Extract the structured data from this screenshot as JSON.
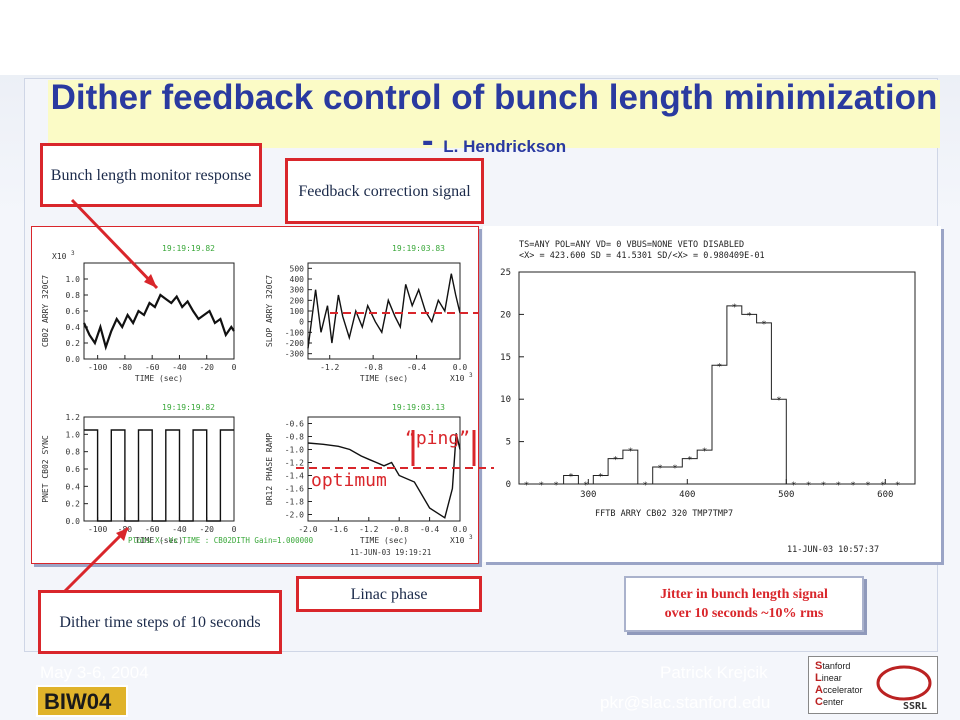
{
  "slide": {
    "title": "Dither feedback control of bunch length minimization - ",
    "title_author": "L. Hendrickson",
    "footer_date": "May 3-6, 2004",
    "footer_author": "Patrick Krejcik",
    "footer_email": "pkr@slac.stanford.edu",
    "colors": {
      "title": "#2a3aa0",
      "accent": "#d9262b",
      "footer_bg": "#0a1e6e",
      "title_band": "#fbfbc6"
    }
  },
  "callouts": {
    "bunch_length": "Bunch length monitor response",
    "feedback_correction": "Feedback correction signal",
    "dither_steps": "Dither time steps of 10 seconds",
    "linac_phase": "Linac phase",
    "jitter_line1": "Jitter in bunch length signal",
    "jitter_line2": "over 10 seconds ~10% rms",
    "ping": "“ping”",
    "optimum": "optimum"
  },
  "logos": {
    "biw": "BIW04",
    "slac_lines": [
      "Stanford",
      "Linear",
      "Accelerator",
      "Center"
    ],
    "ssrl": "SSRL"
  },
  "chart_data": [
    {
      "type": "line",
      "timestamp": "19:19:19.82",
      "ylabel": "CB02 ARRY 320C7",
      "scale_label": "X10",
      "scale_exp": "3",
      "xlabel": "TIME (sec)",
      "xlim": [
        -110,
        0
      ],
      "ylim": [
        0,
        1.2
      ],
      "xticks": [
        -100,
        -80,
        -60,
        -40,
        -20,
        0
      ],
      "xtick_labels": [
        "-100",
        "-80",
        "-60",
        "-40",
        "-20",
        "0"
      ],
      "yticks": [
        0,
        0.2,
        0.4,
        0.6,
        0.8,
        1.0
      ],
      "ytick_labels": [
        "0.0",
        "0.2",
        "0.4",
        "0.6",
        "0.8",
        "1.0"
      ],
      "x": [
        -110,
        -106,
        -102,
        -98,
        -94,
        -90,
        -86,
        -82,
        -78,
        -74,
        -70,
        -66,
        -62,
        -58,
        -54,
        -50,
        -46,
        -42,
        -38,
        -34,
        -30,
        -26,
        -22,
        -18,
        -14,
        -10,
        -6,
        -2,
        0
      ],
      "y": [
        0.45,
        0.3,
        0.2,
        0.4,
        0.15,
        0.35,
        0.5,
        0.4,
        0.55,
        0.45,
        0.6,
        0.55,
        0.7,
        0.65,
        0.8,
        0.75,
        0.7,
        0.78,
        0.65,
        0.72,
        0.6,
        0.5,
        0.55,
        0.6,
        0.45,
        0.5,
        0.3,
        0.4,
        0.35
      ]
    },
    {
      "type": "line",
      "timestamp": "19:19:03.83",
      "ylabel": "SLOP ARRY 320C7",
      "scale_label": "X10",
      "scale_exp": "3",
      "xlabel": "TIME (sec)",
      "xlim": [
        -1.4,
        0
      ],
      "ylim": [
        -350,
        550
      ],
      "xticks": [
        -1.2,
        -0.8,
        -0.4,
        0
      ],
      "xtick_labels": [
        "-1.2",
        "-0.8",
        "-0.4",
        "0.0"
      ],
      "yticks": [
        -300,
        -200,
        -100,
        0,
        100,
        200,
        300,
        400,
        500
      ],
      "ytick_labels": [
        "-300",
        "-200",
        "-100",
        "0",
        "100",
        "200",
        "300",
        "400",
        "500"
      ],
      "x": [
        -1.4,
        -1.33,
        -1.28,
        -1.22,
        -1.18,
        -1.12,
        -1.08,
        -1.02,
        -0.96,
        -0.9,
        -0.85,
        -0.78,
        -0.72,
        -0.66,
        -0.6,
        -0.55,
        -0.5,
        -0.44,
        -0.38,
        -0.32,
        -0.26,
        -0.2,
        -0.14,
        -0.08,
        -0.04,
        0
      ],
      "y": [
        -250,
        300,
        -100,
        150,
        -200,
        250,
        50,
        -150,
        100,
        -50,
        150,
        0,
        -100,
        200,
        50,
        -50,
        350,
        150,
        300,
        100,
        0,
        200,
        100,
        450,
        250,
        80
      ]
    },
    {
      "type": "line",
      "timestamp": "19:19:19.82",
      "ylabel": "PNET CB02 SYNC",
      "xlabel": "TIME (sec)",
      "xlim": [
        -110,
        0
      ],
      "ylim": [
        0,
        1.2
      ],
      "xticks": [
        -100,
        -80,
        -60,
        -40,
        -20,
        0
      ],
      "xtick_labels": [
        "-100",
        "-80",
        "-60",
        "-40",
        "-20",
        "0"
      ],
      "yticks": [
        0,
        0.2,
        0.4,
        0.6,
        0.8,
        1.0,
        1.2
      ],
      "ytick_labels": [
        "0.0",
        "0.2",
        "0.4",
        "0.6",
        "0.8",
        "1.0",
        "1.2"
      ],
      "x": [
        -110,
        -100,
        -100,
        -90,
        -90,
        -80,
        -80,
        -70,
        -70,
        -60,
        -60,
        -50,
        -50,
        -40,
        -40,
        -30,
        -30,
        -20,
        -20,
        -10,
        -10,
        0
      ],
      "y": [
        1.05,
        1.05,
        0,
        0,
        1.05,
        1.05,
        0,
        0,
        1.05,
        1.05,
        0,
        0,
        1.05,
        1.05,
        0,
        0,
        1.05,
        1.05,
        0,
        0,
        1.05,
        1.05
      ],
      "caption": "Plots  X- Vs TIME : CB02DITH Gain=1.000000"
    },
    {
      "type": "line",
      "timestamp": "19:19:03.13",
      "ylabel": "DR12 PHASE RAMP",
      "scale_label": "X10",
      "scale_exp": "3",
      "xlabel": "TIME (sec)",
      "xlim": [
        -2.0,
        0
      ],
      "ylim": [
        -2.1,
        -0.5
      ],
      "xticks": [
        -2.0,
        -1.6,
        -1.2,
        -0.8,
        -0.4,
        0
      ],
      "xtick_labels": [
        "-2.0",
        "-1.6",
        "-1.2",
        "-0.8",
        "-0.4",
        "0.0"
      ],
      "yticks": [
        -2.0,
        -1.8,
        -1.6,
        -1.4,
        -1.2,
        -1.0,
        -0.8,
        -0.6
      ],
      "ytick_labels": [
        "-2.0",
        "-1.8",
        "-1.6",
        "-1.4",
        "-1.2",
        "-1.0",
        "-0.8",
        "-0.6"
      ],
      "x": [
        -2.0,
        -1.8,
        -1.6,
        -1.45,
        -1.3,
        -1.2,
        -1.1,
        -1.0,
        -0.9,
        -0.85,
        -0.8,
        -0.6,
        -0.4,
        -0.2,
        -0.1,
        -0.05,
        0
      ],
      "y": [
        -0.9,
        -0.92,
        -0.95,
        -1.0,
        -1.1,
        -1.15,
        -1.2,
        -1.25,
        -1.2,
        -1.3,
        -1.4,
        -1.5,
        -1.9,
        -2.05,
        -1.6,
        -0.75,
        -1.0
      ],
      "caption": "11-JUN-03 19:19:21"
    },
    {
      "type": "bar",
      "header_line1": "TS=ANY      POL=ANY    VD=  0   VBUS=NONE   VETO DISABLED",
      "header_line2": "<X> =  423.600        SD =  41.5301        SD/<X> =  0.980409E-01",
      "xlabel": "FFTB        ARRY CB02   320   TMP7TMP7",
      "xlim": [
        230,
        630
      ],
      "ylim": [
        0,
        25
      ],
      "xticks": [
        300,
        400,
        500,
        600
      ],
      "xtick_labels": [
        "300",
        "400",
        "500",
        "600"
      ],
      "yticks": [
        0,
        5,
        10,
        15,
        20,
        25
      ],
      "ytick_labels": [
        "0",
        "5",
        "10",
        "15",
        "20",
        "25"
      ],
      "bin_starts": [
        230,
        245,
        260,
        275,
        290,
        305,
        320,
        335,
        350,
        365,
        380,
        395,
        410,
        425,
        440,
        455,
        470,
        485,
        500,
        515,
        530,
        545,
        560,
        575,
        590,
        605
      ],
      "bin_width": 15,
      "values": [
        0,
        0,
        0,
        1,
        0,
        1,
        3,
        4,
        0,
        2,
        2,
        3,
        4,
        14,
        21,
        20,
        19,
        10,
        0,
        0,
        0,
        0,
        0,
        0,
        0,
        0
      ],
      "footer_timestamp": "11-JUN-03 10:57:37"
    }
  ]
}
